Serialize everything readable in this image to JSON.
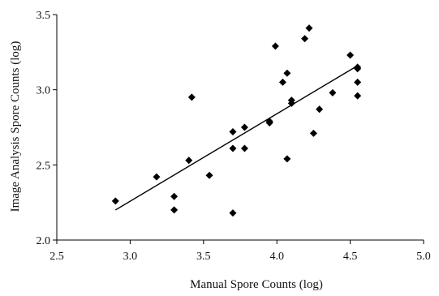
{
  "chart_data": {
    "type": "scatter",
    "xlabel": "Manual Spore Counts (log)",
    "ylabel": "Image Analysis Spore Counts (log)",
    "xlim": [
      2.5,
      5.0
    ],
    "ylim": [
      2.0,
      3.5
    ],
    "xticks": [
      "2.5",
      "3.0",
      "3.5",
      "4.0",
      "4.5",
      "5.0"
    ],
    "yticks": [
      "2.0",
      "2.5",
      "3.0",
      "3.5"
    ],
    "grid": false,
    "marker": "diamond",
    "marker_color": "#000000",
    "points": [
      {
        "x": 2.9,
        "y": 2.26
      },
      {
        "x": 3.18,
        "y": 2.42
      },
      {
        "x": 3.3,
        "y": 2.29
      },
      {
        "x": 3.3,
        "y": 2.2
      },
      {
        "x": 3.4,
        "y": 2.53
      },
      {
        "x": 3.42,
        "y": 2.95
      },
      {
        "x": 3.54,
        "y": 2.43
      },
      {
        "x": 3.7,
        "y": 2.72
      },
      {
        "x": 3.7,
        "y": 2.61
      },
      {
        "x": 3.7,
        "y": 2.18
      },
      {
        "x": 3.78,
        "y": 2.75
      },
      {
        "x": 3.78,
        "y": 2.61
      },
      {
        "x": 3.95,
        "y": 2.79
      },
      {
        "x": 3.95,
        "y": 2.78
      },
      {
        "x": 3.99,
        "y": 3.29
      },
      {
        "x": 4.04,
        "y": 3.05
      },
      {
        "x": 4.07,
        "y": 3.11
      },
      {
        "x": 4.07,
        "y": 2.54
      },
      {
        "x": 4.1,
        "y": 2.93
      },
      {
        "x": 4.1,
        "y": 2.91
      },
      {
        "x": 4.19,
        "y": 3.34
      },
      {
        "x": 4.22,
        "y": 3.41
      },
      {
        "x": 4.25,
        "y": 2.71
      },
      {
        "x": 4.29,
        "y": 2.87
      },
      {
        "x": 4.38,
        "y": 2.98
      },
      {
        "x": 4.5,
        "y": 3.23
      },
      {
        "x": 4.55,
        "y": 3.15
      },
      {
        "x": 4.55,
        "y": 3.14
      },
      {
        "x": 4.55,
        "y": 3.05
      },
      {
        "x": 4.55,
        "y": 2.96
      }
    ],
    "trendline": {
      "x": [
        2.9,
        4.55
      ],
      "y": [
        2.2,
        3.16
      ]
    }
  }
}
